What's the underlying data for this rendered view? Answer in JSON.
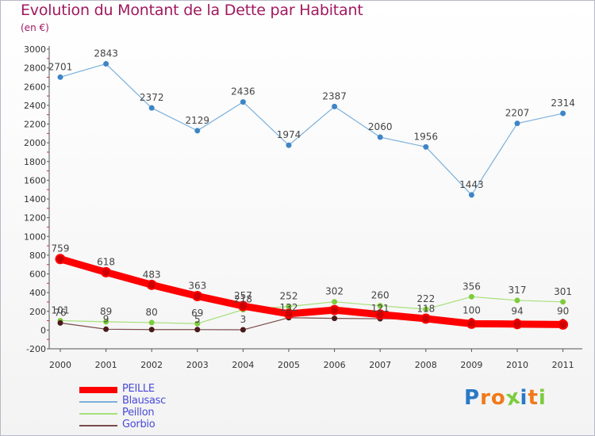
{
  "chart_data": {
    "type": "line",
    "title": "Evolution du Montant de la Dette par Habitant",
    "subtitle": "(en €)",
    "x": [
      "2000",
      "2001",
      "2002",
      "2003",
      "2004",
      "2005",
      "2006",
      "2007",
      "2008",
      "2009",
      "2010",
      "2011"
    ],
    "ylim": [
      -200,
      3000
    ],
    "yticks": [
      -200,
      0,
      200,
      400,
      600,
      800,
      1000,
      1200,
      1400,
      1600,
      1800,
      2000,
      2200,
      2400,
      2600,
      2800,
      3000
    ],
    "grid": false,
    "legend_position": "bottom-left",
    "series": [
      {
        "name": "PEILLE",
        "color": "#ff0000",
        "point_color": "#cc0000",
        "width": 9,
        "values": [
          759,
          618,
          483,
          363,
          257,
          174,
          214,
          166,
          122,
          68,
          64,
          59
        ],
        "labels": [
          "759",
          "618",
          "483",
          "363",
          "257",
          "",
          "",
          "",
          "",
          "",
          "",
          ""
        ]
      },
      {
        "name": "Blausasc",
        "color": "#7ab0dc",
        "point_color": "#3f85c6",
        "width": 1.2,
        "values": [
          2701,
          2843,
          2372,
          2129,
          2436,
          1974,
          2387,
          2060,
          1956,
          1443,
          2207,
          2314
        ],
        "labels": [
          "2701",
          "2843",
          "2372",
          "2129",
          "2436",
          "1974",
          "2387",
          "2060",
          "1956",
          "1443",
          "2207",
          "2314"
        ]
      },
      {
        "name": "Peillon",
        "color": "#a6e07a",
        "point_color": "#7dcc3c",
        "width": 1.2,
        "values": [
          101,
          89,
          80,
          69,
          218,
          252,
          302,
          260,
          222,
          356,
          317,
          301
        ],
        "labels": [
          "101",
          "89",
          "80",
          "69",
          "218",
          "252",
          "302",
          "260",
          "222",
          "356",
          "317",
          "301"
        ]
      },
      {
        "name": "Gorbio",
        "color": "#7a4a4a",
        "point_color": "#4a1a1a",
        "width": 1.2,
        "values": [
          76,
          9,
          5,
          5,
          3,
          132,
          125,
          121,
          118,
          100,
          94,
          90
        ],
        "labels": [
          "76",
          "9",
          "",
          "5",
          "3",
          "132",
          "",
          "121",
          "118",
          "100",
          "94",
          "90"
        ]
      }
    ]
  },
  "logo": {
    "text": "Proxiti",
    "colors": [
      "#2a79c6",
      "#f07a1a",
      "#f07a1a",
      "#7dcc3c",
      "#2a79c6",
      "#f07a1a",
      "#7dcc3c"
    ]
  }
}
